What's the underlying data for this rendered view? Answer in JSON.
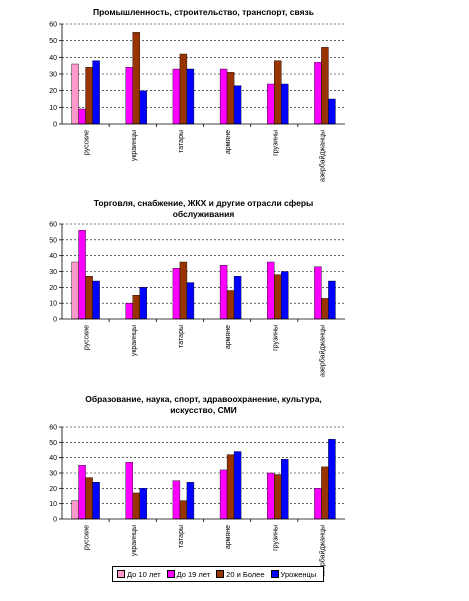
{
  "chart_data": [
    {
      "type": "bar",
      "title_lines": [
        "Промышленность, строительство, транспорт, связь"
      ],
      "categories": [
        "русские",
        "украинцы",
        "татары",
        "армяне",
        "грузины",
        "азербайджанцы"
      ],
      "ylim": [
        0,
        60
      ],
      "yticks": [
        0,
        10,
        20,
        30,
        40,
        50,
        60
      ],
      "series": [
        {
          "name": "До 10 лет",
          "color": "#FF99CC",
          "values": [
            36,
            0,
            0,
            0,
            0,
            0
          ]
        },
        {
          "name": "До 19 лет",
          "color": "#FF00FF",
          "values": [
            9,
            34,
            33,
            33,
            24,
            37
          ]
        },
        {
          "name": "20 и более",
          "color": "#993300",
          "values": [
            34,
            55,
            42,
            31,
            38,
            46
          ]
        },
        {
          "name": "Уроженцы",
          "color": "#0000FF",
          "values": [
            38,
            20,
            33,
            23,
            24,
            15
          ]
        }
      ]
    },
    {
      "type": "bar",
      "title_lines": [
        "Торговля, снабжение, ЖКХ и другие отрасли сферы",
        "обслуживания"
      ],
      "categories": [
        "русские",
        "украинцы",
        "татары",
        "армяне",
        "грузины",
        "азербайджанцы"
      ],
      "ylim": [
        0,
        60
      ],
      "yticks": [
        0,
        10,
        20,
        30,
        40,
        50,
        60
      ],
      "series": [
        {
          "name": "До 10 лет",
          "color": "#FF99CC",
          "values": [
            36,
            0,
            0,
            0,
            0,
            0
          ]
        },
        {
          "name": "До 19 лет",
          "color": "#FF00FF",
          "values": [
            56,
            10,
            32,
            34,
            36,
            33
          ]
        },
        {
          "name": "20 и более",
          "color": "#993300",
          "values": [
            27,
            15,
            36,
            18,
            28,
            13
          ]
        },
        {
          "name": "Уроженцы",
          "color": "#0000FF",
          "values": [
            24,
            20,
            23,
            27,
            30,
            24
          ]
        }
      ]
    },
    {
      "type": "bar",
      "title_lines": [
        "Образование, наука, спорт, здравоохранение, культура,",
        "искусство, СМИ"
      ],
      "categories": [
        "русские",
        "украинцы",
        "татары",
        "армяне",
        "грузины",
        "азербайджанцы"
      ],
      "ylim": [
        0,
        60
      ],
      "yticks": [
        0,
        10,
        20,
        30,
        40,
        50,
        60
      ],
      "series": [
        {
          "name": "До 10 лет",
          "color": "#FF99CC",
          "values": [
            12,
            0,
            0,
            0,
            0,
            0
          ]
        },
        {
          "name": "До 19 лет",
          "color": "#FF00FF",
          "values": [
            35,
            37,
            25,
            32,
            30,
            20
          ]
        },
        {
          "name": "20 и более",
          "color": "#993300",
          "values": [
            27,
            17,
            12,
            42,
            29,
            34
          ]
        },
        {
          "name": "Уроженцы",
          "color": "#0000FF",
          "values": [
            24,
            20,
            24,
            44,
            39,
            52
          ]
        }
      ]
    }
  ],
  "legend": {
    "items": [
      {
        "label": "До 10 лет",
        "color": "#FF99CC"
      },
      {
        "label": "До 19 лет",
        "color": "#FF00FF"
      },
      {
        "label": "20 и Более",
        "color": "#993300"
      },
      {
        "label": "Уроженцы",
        "color": "#0000FF"
      }
    ]
  }
}
